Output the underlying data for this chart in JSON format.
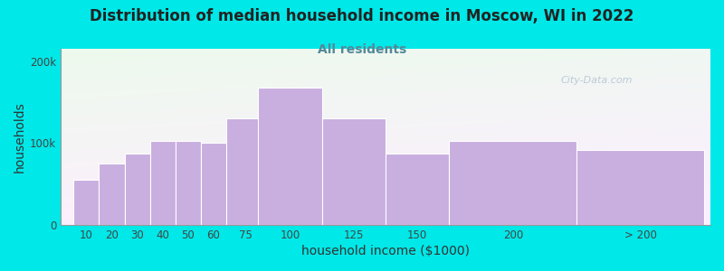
{
  "title": "Distribution of median household income in Moscow, WI in 2022",
  "subtitle": "All residents",
  "xlabel": "household income ($1000)",
  "ylabel": "households",
  "bar_labels": [
    "10",
    "20",
    "30",
    "40",
    "50",
    "60",
    "75",
    "100",
    "125",
    "150",
    "200",
    "> 200"
  ],
  "bar_values": [
    55000,
    75000,
    87000,
    103000,
    103000,
    100000,
    130000,
    168000,
    130000,
    87000,
    103000,
    92000
  ],
  "bar_color": "#c9aee0",
  "bar_edge_color": "#ffffff",
  "background_color": "#00e8e8",
  "yticks": [
    0,
    100000,
    200000
  ],
  "ytick_labels": [
    "0",
    "100k",
    "200k"
  ],
  "ylim": [
    0,
    215000
  ],
  "title_fontsize": 12,
  "subtitle_fontsize": 10,
  "subtitle_color": "#558899",
  "watermark": "City-Data.com",
  "watermark_color": "#aabbcc",
  "bar_widths": [
    10,
    10,
    10,
    10,
    10,
    10,
    15,
    25,
    25,
    25,
    50,
    50
  ],
  "bar_left_edges": [
    5,
    15,
    25,
    35,
    45,
    55,
    65,
    77.5,
    102.5,
    127.5,
    152.5,
    202.5
  ],
  "xlim": [
    0,
    255
  ]
}
